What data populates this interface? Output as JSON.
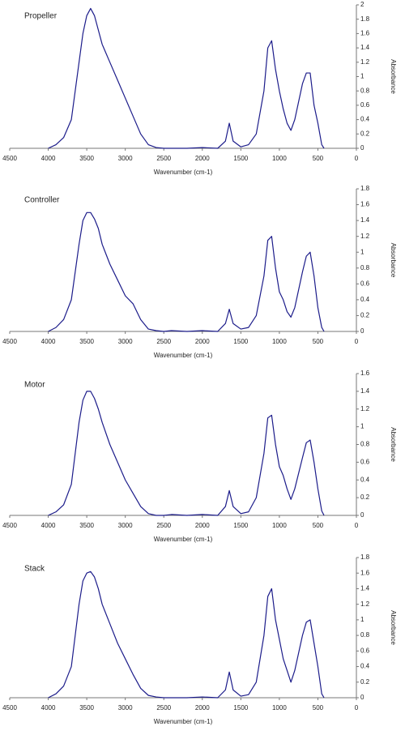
{
  "chart_data": [
    {
      "type": "line",
      "title": "Propeller",
      "x_label": "Wavenumber (cm-1)",
      "y_label": "Absorbance",
      "x": [
        4000,
        3900,
        3800,
        3700,
        3600,
        3550,
        3500,
        3450,
        3400,
        3350,
        3300,
        3200,
        3100,
        3000,
        2900,
        2800,
        2700,
        2600,
        2500,
        2400,
        2200,
        2000,
        1800,
        1700,
        1650,
        1600,
        1500,
        1400,
        1300,
        1200,
        1150,
        1100,
        1050,
        1000,
        950,
        900,
        850,
        800,
        700,
        650,
        600,
        550,
        500,
        450,
        420
      ],
      "series": [
        {
          "color": "#1c1c8a",
          "values": [
            0,
            0.05,
            0.15,
            0.4,
            1.2,
            1.6,
            1.85,
            1.95,
            1.85,
            1.65,
            1.45,
            1.2,
            0.95,
            0.7,
            0.45,
            0.2,
            0.05,
            0.01,
            0,
            0,
            0,
            0.01,
            0,
            0.1,
            0.35,
            0.1,
            0.02,
            0.05,
            0.2,
            0.8,
            1.4,
            1.5,
            1.1,
            0.8,
            0.55,
            0.35,
            0.25,
            0.4,
            0.9,
            1.05,
            1.05,
            0.6,
            0.35,
            0.05,
            0
          ]
        }
      ],
      "xlim": [
        4500,
        0
      ],
      "xticks": [
        4500,
        4000,
        3500,
        3000,
        2500,
        2000,
        1500,
        1000,
        500,
        0
      ],
      "ylim": [
        0,
        2
      ],
      "yticks": [
        0,
        0.2,
        0.4,
        0.6,
        0.8,
        1,
        1.2,
        1.4,
        1.6,
        1.8,
        2
      ]
    },
    {
      "type": "line",
      "title": "Controller",
      "x_label": "Wavenumber (cm-1)",
      "y_label": "Absorbance",
      "x": [
        4000,
        3900,
        3800,
        3700,
        3600,
        3550,
        3500,
        3450,
        3400,
        3350,
        3300,
        3200,
        3100,
        3000,
        2900,
        2800,
        2700,
        2600,
        2500,
        2400,
        2200,
        2000,
        1800,
        1700,
        1650,
        1600,
        1500,
        1400,
        1300,
        1200,
        1150,
        1100,
        1050,
        1000,
        950,
        900,
        850,
        800,
        700,
        650,
        600,
        550,
        500,
        450,
        420
      ],
      "series": [
        {
          "color": "#1c1c8a",
          "values": [
            0,
            0.05,
            0.15,
            0.4,
            1.1,
            1.4,
            1.5,
            1.5,
            1.42,
            1.3,
            1.1,
            0.85,
            0.65,
            0.45,
            0.35,
            0.15,
            0.03,
            0.01,
            0,
            0.01,
            0,
            0.01,
            0,
            0.1,
            0.28,
            0.1,
            0.03,
            0.05,
            0.2,
            0.7,
            1.15,
            1.2,
            0.8,
            0.5,
            0.4,
            0.25,
            0.18,
            0.3,
            0.75,
            0.95,
            1.0,
            0.7,
            0.3,
            0.05,
            0
          ]
        }
      ],
      "xlim": [
        4500,
        0
      ],
      "xticks": [
        4500,
        4000,
        3500,
        3000,
        2500,
        2000,
        1500,
        1000,
        500,
        0
      ],
      "ylim": [
        0,
        1.8
      ],
      "yticks": [
        0,
        0.2,
        0.4,
        0.6,
        0.8,
        1,
        1.2,
        1.4,
        1.6,
        1.8
      ]
    },
    {
      "type": "line",
      "title": "Motor",
      "x_label": "Wavenumber (cm-1)",
      "y_label": "Absorbance",
      "x": [
        4000,
        3900,
        3800,
        3700,
        3600,
        3550,
        3500,
        3450,
        3400,
        3350,
        3300,
        3200,
        3100,
        3000,
        2900,
        2800,
        2700,
        2600,
        2500,
        2400,
        2200,
        2000,
        1800,
        1700,
        1650,
        1600,
        1500,
        1400,
        1300,
        1200,
        1150,
        1100,
        1050,
        1000,
        950,
        900,
        850,
        800,
        700,
        650,
        600,
        550,
        500,
        450,
        420
      ],
      "series": [
        {
          "color": "#1c1c8a",
          "values": [
            0,
            0.04,
            0.12,
            0.35,
            1.05,
            1.3,
            1.4,
            1.4,
            1.32,
            1.2,
            1.05,
            0.8,
            0.6,
            0.4,
            0.25,
            0.1,
            0.02,
            0,
            0,
            0.01,
            0,
            0.01,
            0,
            0.1,
            0.28,
            0.1,
            0.02,
            0.04,
            0.2,
            0.7,
            1.1,
            1.13,
            0.8,
            0.55,
            0.45,
            0.3,
            0.18,
            0.3,
            0.65,
            0.82,
            0.85,
            0.6,
            0.3,
            0.05,
            0
          ]
        }
      ],
      "xlim": [
        4500,
        0
      ],
      "xticks": [
        4500,
        4000,
        3500,
        3000,
        2500,
        2000,
        1500,
        1000,
        500,
        0
      ],
      "ylim": [
        0,
        1.6
      ],
      "yticks": [
        0,
        0.2,
        0.4,
        0.6,
        0.8,
        1,
        1.2,
        1.4,
        1.6
      ]
    },
    {
      "type": "line",
      "title": "Stack",
      "x_label": "Wavenumber (cm-1)",
      "y_label": "Absorbance",
      "x": [
        4000,
        3900,
        3800,
        3700,
        3600,
        3550,
        3500,
        3450,
        3400,
        3350,
        3300,
        3200,
        3100,
        3000,
        2900,
        2800,
        2700,
        2600,
        2500,
        2400,
        2200,
        2000,
        1800,
        1700,
        1650,
        1600,
        1500,
        1400,
        1300,
        1200,
        1150,
        1100,
        1050,
        1000,
        950,
        900,
        850,
        800,
        700,
        650,
        600,
        550,
        500,
        450,
        420
      ],
      "series": [
        {
          "color": "#1c1c8a",
          "values": [
            0,
            0.05,
            0.15,
            0.4,
            1.2,
            1.5,
            1.6,
            1.62,
            1.55,
            1.4,
            1.2,
            0.95,
            0.7,
            0.5,
            0.3,
            0.12,
            0.03,
            0.01,
            0,
            0,
            0,
            0.01,
            0,
            0.1,
            0.33,
            0.1,
            0.02,
            0.04,
            0.2,
            0.8,
            1.3,
            1.4,
            1.0,
            0.75,
            0.5,
            0.35,
            0.2,
            0.35,
            0.8,
            0.97,
            1.0,
            0.7,
            0.4,
            0.05,
            0
          ]
        }
      ],
      "xlim": [
        4500,
        0
      ],
      "xticks": [
        4500,
        4000,
        3500,
        3000,
        2500,
        2000,
        1500,
        1000,
        500,
        0
      ],
      "ylim": [
        0,
        1.8
      ],
      "yticks": [
        0,
        0.2,
        0.4,
        0.6,
        0.8,
        1,
        1.2,
        1.4,
        1.6,
        1.8
      ]
    }
  ]
}
